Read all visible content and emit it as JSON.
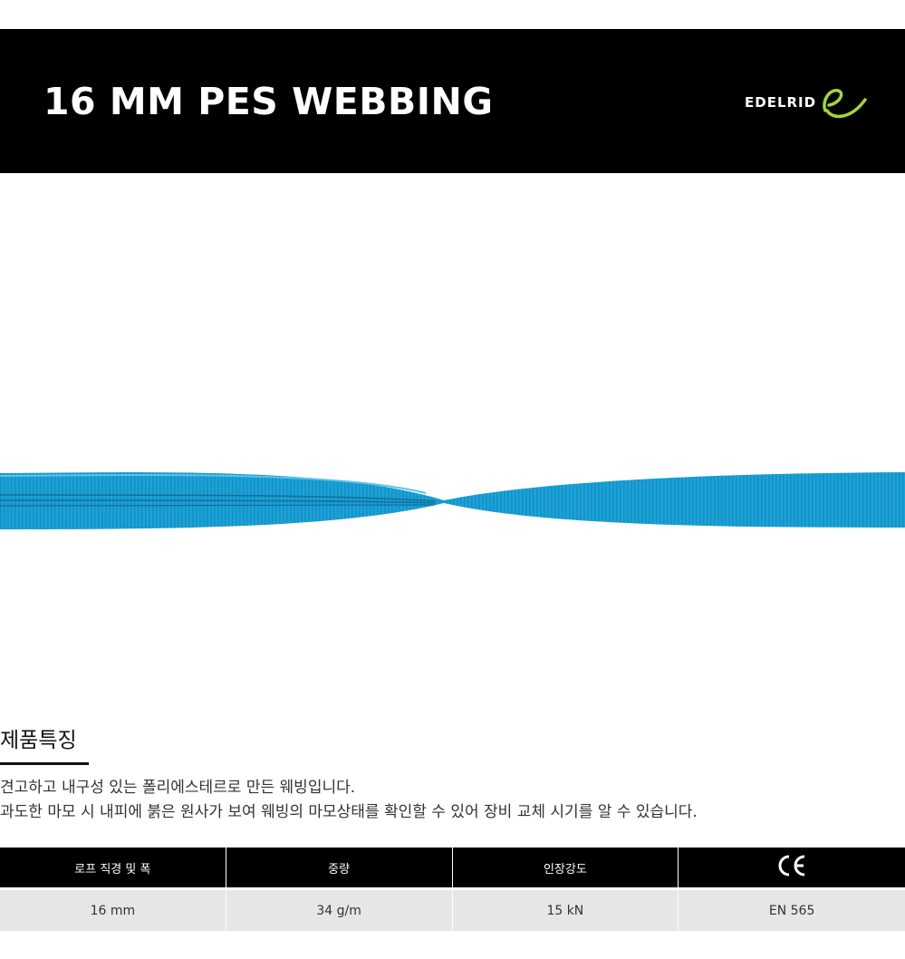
{
  "header": {
    "title": "16 MM PES WEBBING",
    "brand": "EDELRID",
    "brand_mark": "edelrid-e-swoosh-icon",
    "brand_accent": "#a6d33b"
  },
  "product": {
    "image": "blue-webbing-strap-image",
    "color": "#1ba3d8"
  },
  "features": {
    "heading": "제품특징",
    "lines": [
      "견고하고 내구성 있는 폴리에스테르로 만든 웨빙입니다.",
      "과도한 마모 시 내피에 붉은 원사가 보여 웨빙의 마모상태를 확인할 수 있어 장비 교체 시기를 알 수 있습니다."
    ]
  },
  "specs": {
    "headers": [
      "로프 직경 및 폭",
      "중량",
      "인장강도"
    ],
    "ce_icon": "ce-mark-icon",
    "values": [
      "16 mm",
      "34 g/m",
      "15 kN",
      "EN 565"
    ]
  }
}
